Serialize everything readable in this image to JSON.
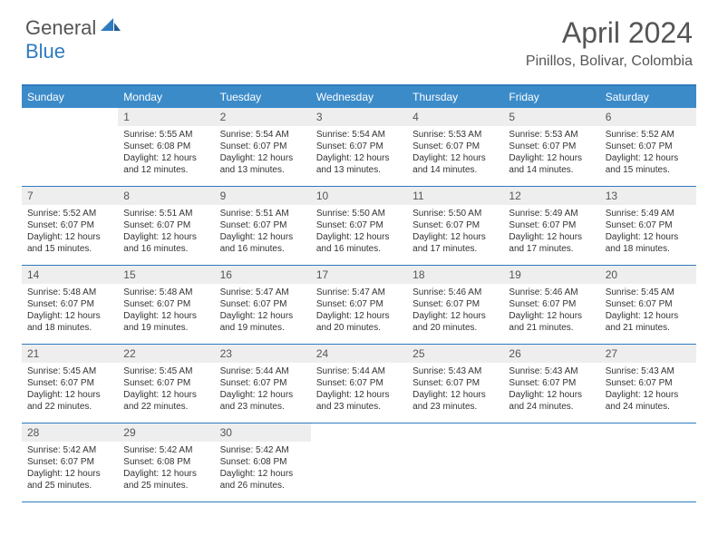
{
  "logo": {
    "text1": "General",
    "text2": "Blue"
  },
  "title": "April 2024",
  "location": "Pinillos, Bolivar, Colombia",
  "colors": {
    "header_bg": "#3b8bc9",
    "border": "#2f7bbf",
    "daybar_bg": "#eeeeee",
    "text": "#333333",
    "title_text": "#555555"
  },
  "weekdays": [
    "Sunday",
    "Monday",
    "Tuesday",
    "Wednesday",
    "Thursday",
    "Friday",
    "Saturday"
  ],
  "weeks": [
    [
      null,
      {
        "n": "1",
        "sr": "5:55 AM",
        "ss": "6:08 PM",
        "dl": "12 hours and 12 minutes."
      },
      {
        "n": "2",
        "sr": "5:54 AM",
        "ss": "6:07 PM",
        "dl": "12 hours and 13 minutes."
      },
      {
        "n": "3",
        "sr": "5:54 AM",
        "ss": "6:07 PM",
        "dl": "12 hours and 13 minutes."
      },
      {
        "n": "4",
        "sr": "5:53 AM",
        "ss": "6:07 PM",
        "dl": "12 hours and 14 minutes."
      },
      {
        "n": "5",
        "sr": "5:53 AM",
        "ss": "6:07 PM",
        "dl": "12 hours and 14 minutes."
      },
      {
        "n": "6",
        "sr": "5:52 AM",
        "ss": "6:07 PM",
        "dl": "12 hours and 15 minutes."
      }
    ],
    [
      {
        "n": "7",
        "sr": "5:52 AM",
        "ss": "6:07 PM",
        "dl": "12 hours and 15 minutes."
      },
      {
        "n": "8",
        "sr": "5:51 AM",
        "ss": "6:07 PM",
        "dl": "12 hours and 16 minutes."
      },
      {
        "n": "9",
        "sr": "5:51 AM",
        "ss": "6:07 PM",
        "dl": "12 hours and 16 minutes."
      },
      {
        "n": "10",
        "sr": "5:50 AM",
        "ss": "6:07 PM",
        "dl": "12 hours and 16 minutes."
      },
      {
        "n": "11",
        "sr": "5:50 AM",
        "ss": "6:07 PM",
        "dl": "12 hours and 17 minutes."
      },
      {
        "n": "12",
        "sr": "5:49 AM",
        "ss": "6:07 PM",
        "dl": "12 hours and 17 minutes."
      },
      {
        "n": "13",
        "sr": "5:49 AM",
        "ss": "6:07 PM",
        "dl": "12 hours and 18 minutes."
      }
    ],
    [
      {
        "n": "14",
        "sr": "5:48 AM",
        "ss": "6:07 PM",
        "dl": "12 hours and 18 minutes."
      },
      {
        "n": "15",
        "sr": "5:48 AM",
        "ss": "6:07 PM",
        "dl": "12 hours and 19 minutes."
      },
      {
        "n": "16",
        "sr": "5:47 AM",
        "ss": "6:07 PM",
        "dl": "12 hours and 19 minutes."
      },
      {
        "n": "17",
        "sr": "5:47 AM",
        "ss": "6:07 PM",
        "dl": "12 hours and 20 minutes."
      },
      {
        "n": "18",
        "sr": "5:46 AM",
        "ss": "6:07 PM",
        "dl": "12 hours and 20 minutes."
      },
      {
        "n": "19",
        "sr": "5:46 AM",
        "ss": "6:07 PM",
        "dl": "12 hours and 21 minutes."
      },
      {
        "n": "20",
        "sr": "5:45 AM",
        "ss": "6:07 PM",
        "dl": "12 hours and 21 minutes."
      }
    ],
    [
      {
        "n": "21",
        "sr": "5:45 AM",
        "ss": "6:07 PM",
        "dl": "12 hours and 22 minutes."
      },
      {
        "n": "22",
        "sr": "5:45 AM",
        "ss": "6:07 PM",
        "dl": "12 hours and 22 minutes."
      },
      {
        "n": "23",
        "sr": "5:44 AM",
        "ss": "6:07 PM",
        "dl": "12 hours and 23 minutes."
      },
      {
        "n": "24",
        "sr": "5:44 AM",
        "ss": "6:07 PM",
        "dl": "12 hours and 23 minutes."
      },
      {
        "n": "25",
        "sr": "5:43 AM",
        "ss": "6:07 PM",
        "dl": "12 hours and 23 minutes."
      },
      {
        "n": "26",
        "sr": "5:43 AM",
        "ss": "6:07 PM",
        "dl": "12 hours and 24 minutes."
      },
      {
        "n": "27",
        "sr": "5:43 AM",
        "ss": "6:07 PM",
        "dl": "12 hours and 24 minutes."
      }
    ],
    [
      {
        "n": "28",
        "sr": "5:42 AM",
        "ss": "6:07 PM",
        "dl": "12 hours and 25 minutes."
      },
      {
        "n": "29",
        "sr": "5:42 AM",
        "ss": "6:08 PM",
        "dl": "12 hours and 25 minutes."
      },
      {
        "n": "30",
        "sr": "5:42 AM",
        "ss": "6:08 PM",
        "dl": "12 hours and 26 minutes."
      },
      null,
      null,
      null,
      null
    ]
  ],
  "labels": {
    "sunrise": "Sunrise:",
    "sunset": "Sunset:",
    "daylight": "Daylight:"
  }
}
